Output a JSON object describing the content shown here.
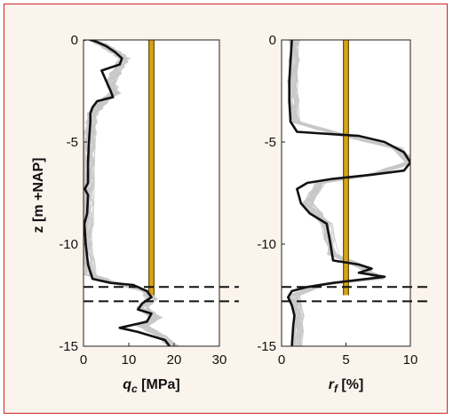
{
  "chart_data": [
    {
      "type": "line",
      "xlabel_main": "q",
      "xlabel_sub": "c",
      "xlabel_unit": "[MPa]",
      "ylabel": "z [m +NAP]",
      "xlim": [
        0,
        30
      ],
      "ylim": [
        -15,
        0
      ],
      "x_ticks": [
        0,
        10,
        20,
        30
      ],
      "y_ticks": [
        0,
        -5,
        -10,
        -15
      ],
      "horizontal_dashed_lines": [
        -12.1,
        -12.8
      ],
      "vertical_reference": {
        "x": 15,
        "y_range": [
          -12.5,
          0
        ],
        "color": "#d8a418"
      },
      "series": [
        {
          "role": "measured-profile",
          "color": "#111111",
          "points": [
            [
              0,
              0
            ],
            [
              1,
              0.05
            ],
            [
              3,
              -0.1
            ],
            [
              5,
              -0.3
            ],
            [
              7,
              -0.6
            ],
            [
              8.5,
              -0.9
            ],
            [
              8,
              -1.2
            ],
            [
              4,
              -1.5
            ],
            [
              5,
              -2
            ],
            [
              6,
              -2.5
            ],
            [
              6.5,
              -2.8
            ],
            [
              3,
              -3
            ],
            [
              2,
              -3.3
            ],
            [
              1.5,
              -3.6
            ],
            [
              1.5,
              -4
            ],
            [
              1.2,
              -5
            ],
            [
              1,
              -6
            ],
            [
              1,
              -7
            ],
            [
              0.3,
              -7.3
            ],
            [
              1,
              -7.6
            ],
            [
              0.8,
              -8.5
            ],
            [
              0.2,
              -9
            ],
            [
              0.5,
              -10
            ],
            [
              1,
              -11
            ],
            [
              2,
              -11.7
            ],
            [
              6,
              -11.9
            ],
            [
              11,
              -12
            ],
            [
              14,
              -12.3
            ],
            [
              15,
              -12.6
            ],
            [
              13,
              -12.9
            ],
            [
              12,
              -13.2
            ],
            [
              15,
              -13.4
            ],
            [
              14,
              -13.8
            ],
            [
              8,
              -14.1
            ],
            [
              12,
              -14.3
            ],
            [
              15,
              -14.5
            ],
            [
              18,
              -14.7
            ],
            [
              19,
              -15
            ]
          ]
        },
        {
          "role": "simulated-realisations",
          "color": "#c8c8c8",
          "count": 30,
          "points": [
            [
              2,
              0
            ],
            [
              4,
              -0.2
            ],
            [
              7,
              -0.6
            ],
            [
              9,
              -0.9
            ],
            [
              8,
              -1.3
            ],
            [
              6,
              -2
            ],
            [
              7,
              -2.6
            ],
            [
              4,
              -3.1
            ],
            [
              2,
              -3.6
            ],
            [
              1.5,
              -4.5
            ],
            [
              1.2,
              -6
            ],
            [
              1,
              -8
            ],
            [
              0.8,
              -10
            ],
            [
              1.5,
              -11.5
            ],
            [
              7,
              -11.9
            ],
            [
              14,
              -12.3
            ],
            [
              15,
              -12.7
            ],
            [
              13,
              -13.1
            ],
            [
              16,
              -13.6
            ],
            [
              13,
              -14
            ],
            [
              17,
              -14.5
            ],
            [
              20,
              -15
            ]
          ]
        }
      ]
    },
    {
      "type": "line",
      "xlabel_main": "r",
      "xlabel_sub": "f",
      "xlabel_unit": "[%]",
      "ylabel": "",
      "xlim": [
        0,
        10
      ],
      "ylim": [
        -15,
        0
      ],
      "x_ticks": [
        0,
        5,
        10
      ],
      "y_ticks": [
        0,
        -5,
        -10,
        -15
      ],
      "horizontal_dashed_lines": [
        -12.1,
        -12.8
      ],
      "vertical_reference": {
        "x": 5,
        "y_range": [
          -12.5,
          0
        ],
        "color": "#d8a418"
      },
      "series": [
        {
          "role": "measured-profile",
          "color": "#111111",
          "points": [
            [
              0.8,
              0
            ],
            [
              0.7,
              -1
            ],
            [
              0.6,
              -2
            ],
            [
              0.6,
              -3
            ],
            [
              0.7,
              -4
            ],
            [
              1.2,
              -4.5
            ],
            [
              6,
              -4.7
            ],
            [
              8,
              -5
            ],
            [
              9.5,
              -5.5
            ],
            [
              10,
              -6
            ],
            [
              9.5,
              -6.4
            ],
            [
              7,
              -6.6
            ],
            [
              4,
              -6.8
            ],
            [
              2,
              -7
            ],
            [
              1.2,
              -7.3
            ],
            [
              1.5,
              -8
            ],
            [
              2.2,
              -8.5
            ],
            [
              3.5,
              -9
            ],
            [
              3.8,
              -10
            ],
            [
              4,
              -10.8
            ],
            [
              6,
              -11
            ],
            [
              7,
              -11.2
            ],
            [
              6,
              -11.4
            ],
            [
              8,
              -11.6
            ],
            [
              4,
              -11.9
            ],
            [
              2,
              -12.1
            ],
            [
              0.8,
              -12.3
            ],
            [
              0.5,
              -12.6
            ],
            [
              0.8,
              -13
            ],
            [
              1,
              -13.5
            ],
            [
              0.9,
              -14
            ],
            [
              0.8,
              -15
            ]
          ]
        },
        {
          "role": "simulated-realisations",
          "color": "#c8c8c8",
          "count": 30,
          "points": [
            [
              1,
              0
            ],
            [
              0.9,
              -2
            ],
            [
              1,
              -4
            ],
            [
              5,
              -4.7
            ],
            [
              9,
              -5.3
            ],
            [
              10,
              -6
            ],
            [
              7,
              -6.6
            ],
            [
              3,
              -7
            ],
            [
              2,
              -8
            ],
            [
              3.5,
              -9
            ],
            [
              4,
              -10.5
            ],
            [
              6.5,
              -11.2
            ],
            [
              7.5,
              -11.7
            ],
            [
              3,
              -12
            ],
            [
              1,
              -12.5
            ],
            [
              1.3,
              -13.5
            ],
            [
              1.2,
              -15
            ]
          ]
        }
      ]
    }
  ]
}
